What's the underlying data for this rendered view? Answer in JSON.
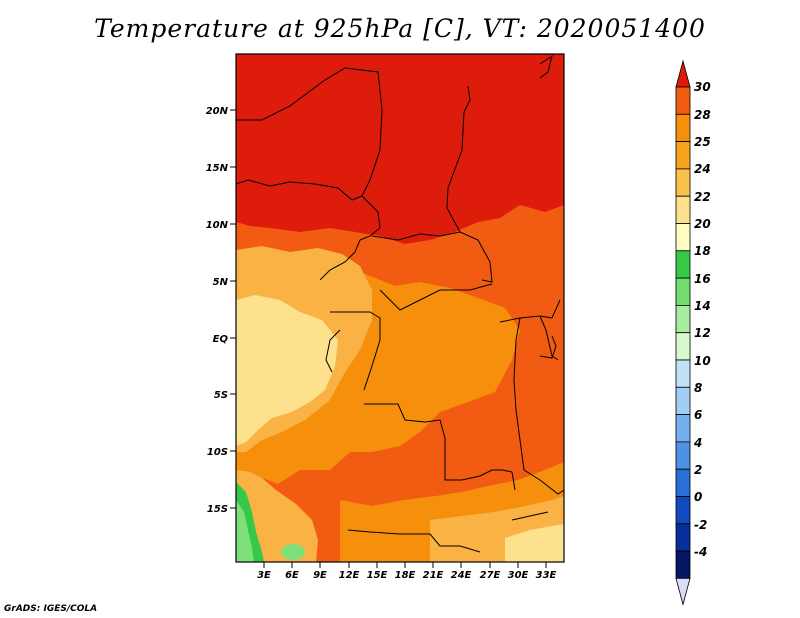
{
  "title": "Temperature at 925hPa [C], VT: 2020051400",
  "credit": "GrADS: IGES/COLA",
  "map": {
    "lat_labels": [
      "20N",
      "15N",
      "10N",
      "5N",
      "EQ",
      "5S",
      "10S",
      "15S"
    ],
    "lon_labels": [
      "3E",
      "6E",
      "9E",
      "12E",
      "15E",
      "18E",
      "21E",
      "24E",
      "27E",
      "30E",
      "33E"
    ],
    "fill_colors": {
      "gt28": "#dd1c0c",
      "25_28": "#f25c12",
      "24_25": "#f6900c",
      "22_24": "#fbb245",
      "20_22": "#fde18c",
      "16_18": "#36c948",
      "14_16": "#7ee07a"
    }
  },
  "colorbar": {
    "labels": [
      "30",
      "28",
      "25",
      "24",
      "22",
      "20",
      "18",
      "16",
      "14",
      "12",
      "10",
      "8",
      "6",
      "4",
      "2",
      "0",
      "-2",
      "-4"
    ],
    "colors": [
      "#dd1c0c",
      "#f25c12",
      "#f6900c",
      "#f7a21b",
      "#fbc14f",
      "#fde08c",
      "#fffbc1",
      "#36c948",
      "#72dd6e",
      "#a8ec9f",
      "#d8f8d0",
      "#c2e1f6",
      "#a0cef5",
      "#74b0ee",
      "#4f91e5",
      "#2a6fd8",
      "#1149c0",
      "#072f9c",
      "#041562",
      "#dddcf8"
    ]
  }
}
